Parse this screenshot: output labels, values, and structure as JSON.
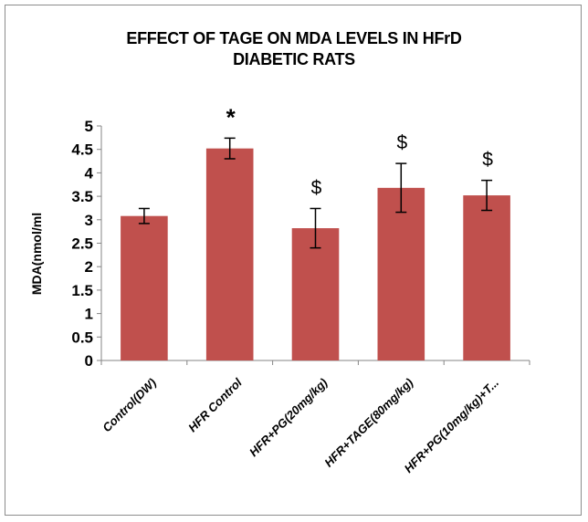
{
  "chart_data": {
    "type": "bar",
    "title_lines": [
      "EFFECT OF TAGE ON MDA LEVELS IN HFrD",
      "DIABETIC RATS"
    ],
    "xlabel": "",
    "ylabel": "MDA(nmol/ml",
    "categories": [
      "Control(DW)",
      "HFR Control",
      "HFR+PG(20mg/kg)",
      "HFR+TAGE(80mg/kg)",
      "HFR+PG(10mg/kg)+T..."
    ],
    "values": [
      3.08,
      4.52,
      2.82,
      3.68,
      3.52
    ],
    "error": [
      0.16,
      0.22,
      0.42,
      0.52,
      0.32
    ],
    "annotations": [
      "",
      "*",
      "$",
      "$",
      "$"
    ],
    "ylim": [
      0,
      5
    ],
    "yticks": [
      "0",
      "0.5",
      "1",
      "1.5",
      "2",
      "2.5",
      "3",
      "3.5",
      "4",
      "4.5",
      "5"
    ],
    "grid": false,
    "legend": "none",
    "bar_color": "#c0504d"
  }
}
